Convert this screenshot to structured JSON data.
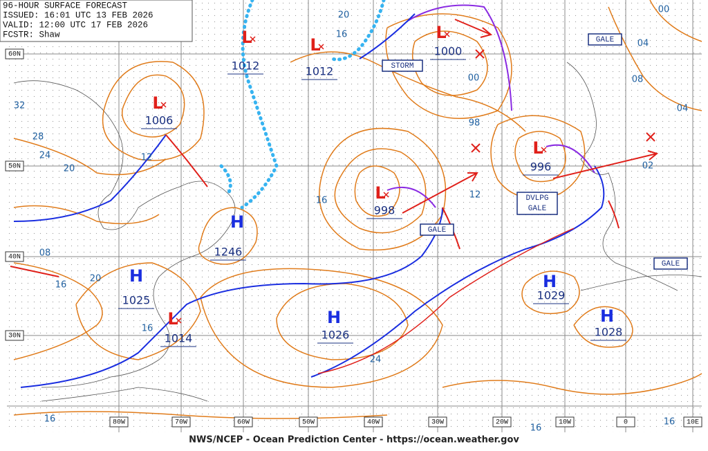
{
  "header": {
    "lines": [
      "96-HOUR SURFACE FORECAST",
      "ISSUED: 16:01 UTC 13 FEB 2026",
      "VALID: 12:00 UTC 17 FEB 2026",
      "FCSTR: Shaw"
    ]
  },
  "footer": "NWS/NCEP - Ocean Prediction Center - https://ocean.weather.gov",
  "latitude_labels": [
    "60N",
    "50N",
    "40N",
    "30N"
  ],
  "longitude_labels": [
    "80W",
    "70W",
    "60W",
    "50W",
    "40W",
    "30W",
    "20W",
    "10W",
    "0",
    "10E"
  ],
  "systems": [
    {
      "symbol": "L",
      "pressure": "1006"
    },
    {
      "symbol": "L",
      "pressure": "1012"
    },
    {
      "symbol": "L",
      "pressure": "1012"
    },
    {
      "symbol": "L",
      "pressure": "1000"
    },
    {
      "symbol": "L",
      "pressure": "996"
    },
    {
      "symbol": "L",
      "pressure": "998"
    },
    {
      "symbol": "L",
      "pressure": "1014"
    },
    {
      "symbol": "H",
      "pressure": "1246"
    },
    {
      "symbol": "H",
      "pressure": "1025"
    },
    {
      "symbol": "H",
      "pressure": "1026"
    },
    {
      "symbol": "H",
      "pressure": "1029"
    },
    {
      "symbol": "H",
      "pressure": "1028"
    }
  ],
  "isobar_labels": [
    "32",
    "28",
    "24",
    "20",
    "12",
    "08",
    "16",
    "20",
    "16",
    "16",
    "20",
    "16",
    "98",
    "12",
    "00",
    "00",
    "04",
    "08",
    "04",
    "02",
    "24",
    "16",
    "16",
    "16"
  ],
  "warnings": [
    [
      "STORM"
    ],
    [
      "GALE"
    ],
    [
      "GALE"
    ],
    [
      "DVLPG",
      "GALE"
    ],
    [
      "GALE"
    ]
  ]
}
